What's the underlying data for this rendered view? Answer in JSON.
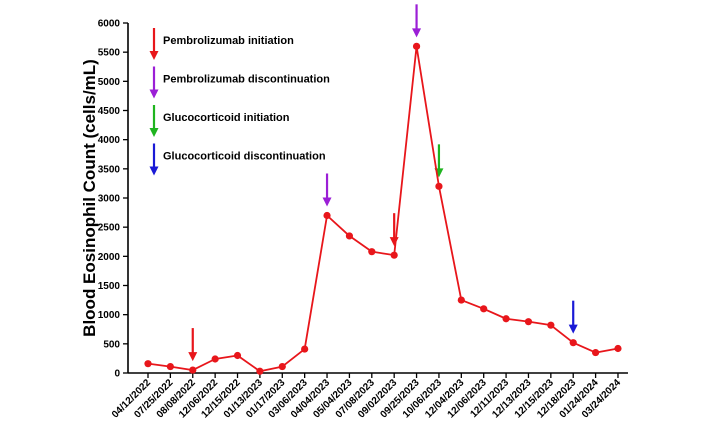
{
  "chart_data": {
    "type": "line",
    "title": "",
    "xlabel": "",
    "ylabel": "Blood Eosinophil Count (cells/mL)",
    "ylim": [
      0,
      6000
    ],
    "yticks": [
      0,
      500,
      1000,
      1500,
      2000,
      2500,
      3000,
      3500,
      4000,
      4500,
      5000,
      5500,
      6000
    ],
    "grid": false,
    "legend_position": "top-left",
    "categories": [
      "04/12/2022",
      "07/25/2022",
      "08/08/2022",
      "12/06/2022",
      "12/15/2022",
      "01/13/2023",
      "01/17/2023",
      "03/06/2023",
      "04/04/2023",
      "05/04/2023",
      "07/08/2023",
      "09/02/2023",
      "09/25/2023",
      "10/06/2023",
      "12/04/2023",
      "12/06/2023",
      "12/11/2023",
      "12/13/2023",
      "12/15/2023",
      "12/18/2023",
      "01/24/2024",
      "03/24/2024"
    ],
    "series": [
      {
        "values": [
          160,
          110,
          50,
          240,
          300,
          30,
          110,
          410,
          2700,
          2350,
          2080,
          2020,
          5600,
          3200,
          1250,
          1100,
          930,
          880,
          820,
          520,
          350,
          420
        ],
        "color": "#e8161b"
      }
    ],
    "legend": [
      {
        "label": "Pembrolizumab initiation",
        "color": "#e8161b"
      },
      {
        "label": "Pembrolizumab discontinuation",
        "color": "#9b1fd6"
      },
      {
        "label": "Glucocorticoid initiation",
        "color": "#1fb41f"
      },
      {
        "label": "Glucocorticoid discontinuation",
        "color": "#1a1ad6"
      }
    ],
    "annotations": [
      {
        "category": "08/08/2022",
        "event": "Pembrolizumab initiation",
        "color": "#e8161b"
      },
      {
        "category": "04/04/2023",
        "event": "Pembrolizumab discontinuation",
        "color": "#9b1fd6"
      },
      {
        "category": "09/02/2023",
        "event": "Pembrolizumab initiation",
        "color": "#e8161b"
      },
      {
        "category": "09/25/2023",
        "event": "Pembrolizumab discontinuation",
        "color": "#9b1fd6"
      },
      {
        "category": "10/06/2023",
        "event": "Glucocorticoid initiation",
        "color": "#1fb41f"
      },
      {
        "category": "12/18/2023",
        "event": "Glucocorticoid discontinuation",
        "color": "#1a1ad6"
      }
    ]
  }
}
